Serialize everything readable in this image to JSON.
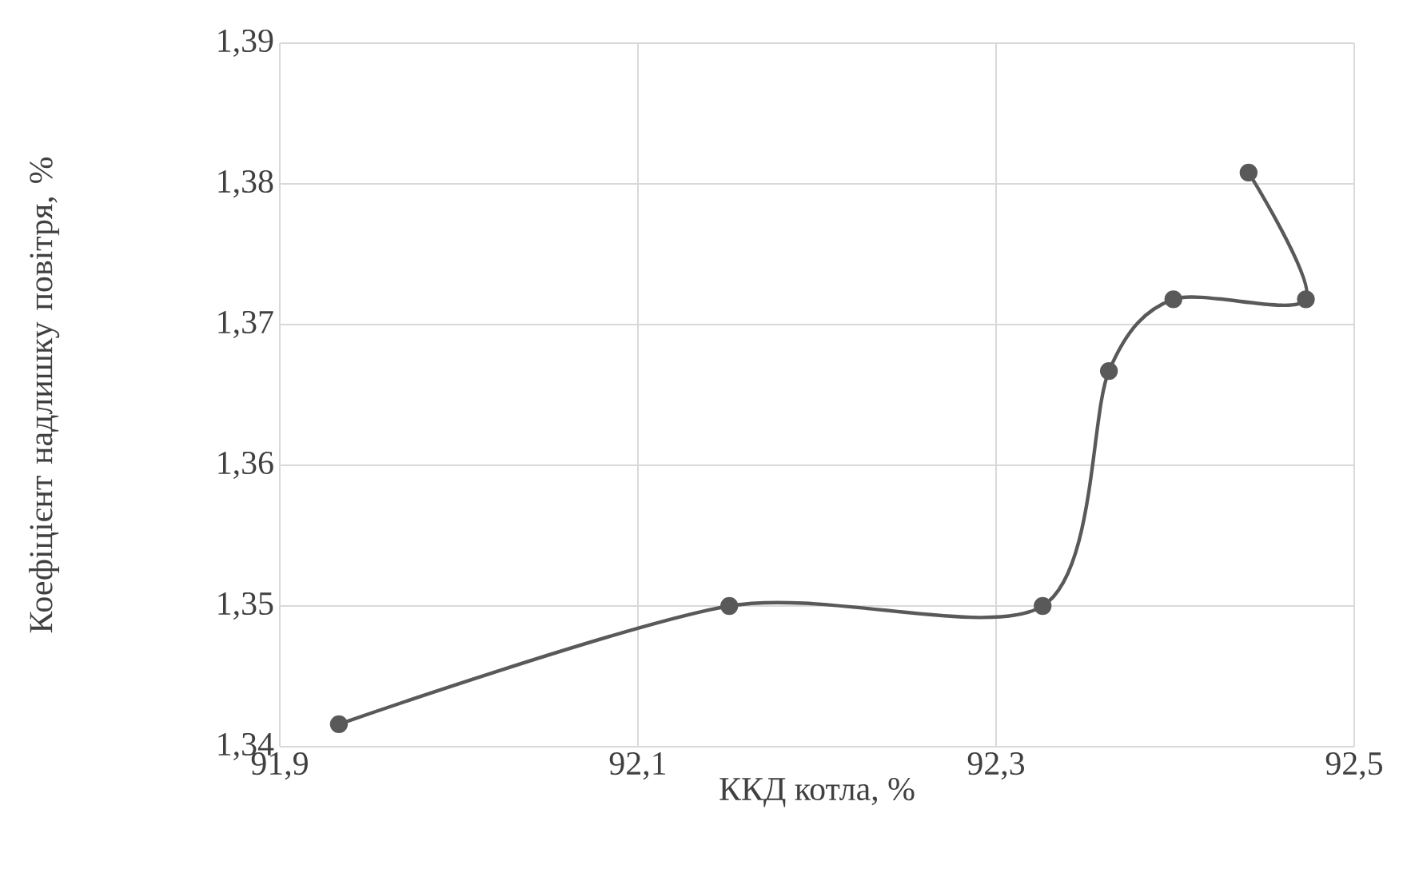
{
  "chart_data": {
    "type": "line",
    "xlabel": "ККД котла, %",
    "ylabel": "Коефіцієнт надлишку повітря, %",
    "series": [
      {
        "color": "#595959",
        "x": [
          91.933,
          92.151,
          92.326,
          92.363,
          92.399,
          92.473,
          92.441
        ],
        "values": [
          1.3416,
          1.35,
          1.35,
          1.3667,
          1.3718,
          1.3718,
          1.3808
        ]
      }
    ],
    "xlim": [
      91.9,
      92.5
    ],
    "ylim": [
      1.34,
      1.39
    ],
    "xticks": [
      {
        "value": 91.9,
        "label": "91,9"
      },
      {
        "value": 92.1,
        "label": "92,1"
      },
      {
        "value": 92.3,
        "label": "92,3"
      },
      {
        "value": 92.5,
        "label": "92,5"
      }
    ],
    "yticks": [
      {
        "value": 1.34,
        "label": "1,34"
      },
      {
        "value": 1.35,
        "label": "1,35"
      },
      {
        "value": 1.36,
        "label": "1,36"
      },
      {
        "value": 1.37,
        "label": "1,37"
      },
      {
        "value": 1.38,
        "label": "1,38"
      },
      {
        "value": 1.39,
        "label": "1,39"
      }
    ],
    "grid": true,
    "marker": "circle",
    "line_style": "solid"
  }
}
